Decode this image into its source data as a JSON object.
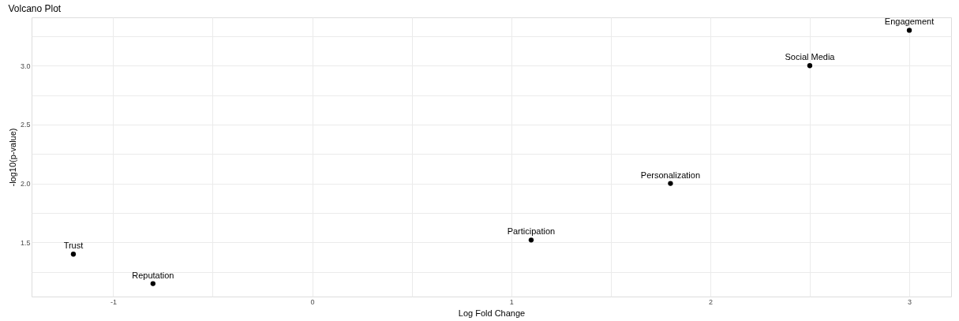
{
  "chart_data": {
    "type": "scatter",
    "title": "Volcano Plot",
    "xlabel": "Log Fold Change",
    "ylabel": "-log10(p-value)",
    "x": [
      -1.2,
      -0.8,
      1.1,
      1.8,
      2.5,
      3.0
    ],
    "series": [
      {
        "color": "#000000",
        "values": [
          1.4,
          1.15,
          1.52,
          2.0,
          3.0,
          3.3
        ]
      }
    ],
    "annotations": [
      {
        "text": "Trust",
        "x": -1.2,
        "y": 1.4
      },
      {
        "text": "Reputation",
        "x": -0.8,
        "y": 1.15
      },
      {
        "text": "Participation",
        "x": 1.1,
        "y": 1.52
      },
      {
        "text": "Personalization",
        "x": 1.8,
        "y": 2.0
      },
      {
        "text": "Social Media",
        "x": 2.5,
        "y": 3.0
      },
      {
        "text": "Engagement",
        "x": 3.0,
        "y": 3.3
      }
    ],
    "xlim": [
      -1.41,
      3.21
    ],
    "ylim": [
      1.04,
      3.41
    ],
    "xticks": [
      -1,
      {
        "value": -0.5,
        "label": null
      },
      0,
      {
        "value": 0.5,
        "label": null
      },
      1,
      {
        "value": 1.5,
        "label": null
      },
      2,
      {
        "value": 2.5,
        "label": null
      },
      3
    ],
    "yticks": [
      {
        "value": 1.25,
        "label": null
      },
      1.5,
      {
        "value": 1.75,
        "label": null
      },
      {
        "value": 2.0,
        "label": "2.0"
      },
      {
        "value": 2.25,
        "label": null
      },
      2.5,
      {
        "value": 2.75,
        "label": null
      },
      {
        "value": 3.0,
        "label": "3.0"
      },
      {
        "value": 3.25,
        "label": null
      }
    ],
    "grid": true,
    "marker": "circle"
  }
}
